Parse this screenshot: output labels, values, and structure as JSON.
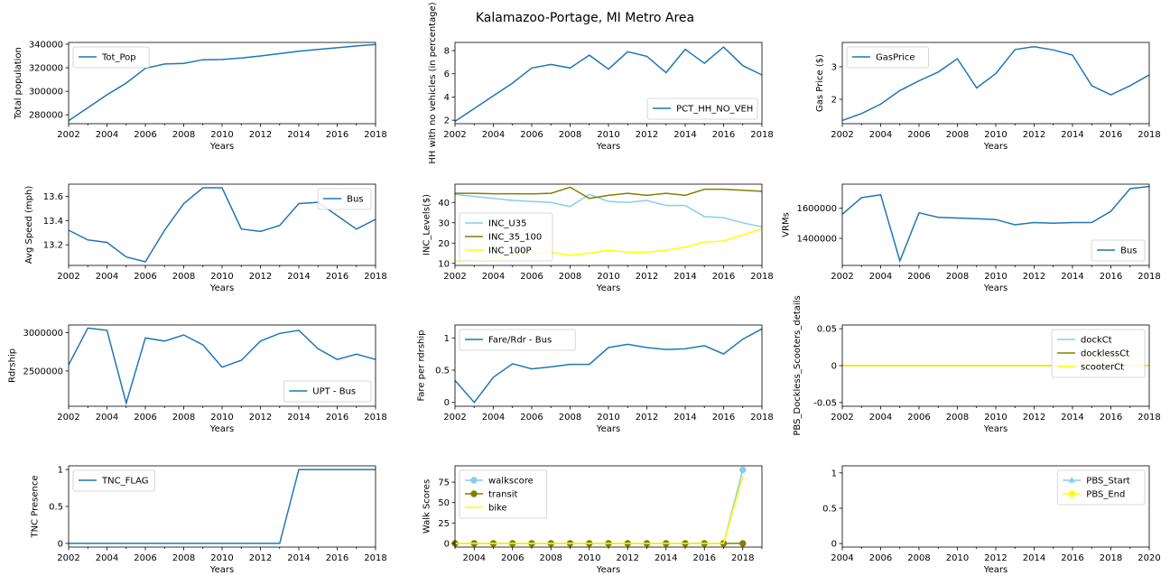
{
  "title": "Kalamazoo-Portage, MI Metro Area",
  "colors": {
    "blue": "#1f77b4",
    "skyblue": "#87ceeb",
    "olive": "#808000",
    "yellow": "#ffff00"
  },
  "chart_data": [
    {
      "type": "line",
      "ylabel": "Total population",
      "xlabel": "Years",
      "xlim": [
        2002,
        2018
      ],
      "xticks": [
        2002,
        2004,
        2006,
        2008,
        2010,
        2012,
        2014,
        2016,
        2018
      ],
      "ylim": [
        272500,
        341500
      ],
      "yticks": [
        280000,
        300000,
        320000,
        340000
      ],
      "legend": "upper-left",
      "series": [
        {
          "name": "Tot_Pop",
          "color": "#1f77b4",
          "x": [
            2002,
            2003,
            2004,
            2005,
            2006,
            2007,
            2008,
            2009,
            2010,
            2011,
            2012,
            2013,
            2014,
            2015,
            2016,
            2017,
            2018
          ],
          "y": [
            275000,
            286000,
            297000,
            307000,
            319500,
            323200,
            323700,
            326800,
            327000,
            328200,
            330000,
            332000,
            334000,
            335500,
            337000,
            338500,
            339800
          ]
        }
      ]
    },
    {
      "type": "line",
      "ylabel": "HH with no vehicles (in percentage)",
      "xlabel": "Years",
      "xlim": [
        2002,
        2018
      ],
      "xticks": [
        2002,
        2004,
        2006,
        2008,
        2010,
        2012,
        2014,
        2016,
        2018
      ],
      "ylim": [
        1.7,
        8.7
      ],
      "yticks": [
        2,
        4,
        6,
        8
      ],
      "legend": "lower-right",
      "series": [
        {
          "name": "PCT_HH_NO_VEH",
          "color": "#1f77b4",
          "x": [
            2002,
            2003,
            2004,
            2005,
            2006,
            2007,
            2008,
            2009,
            2010,
            2011,
            2012,
            2013,
            2014,
            2015,
            2016,
            2017,
            2018
          ],
          "y": [
            1.9,
            3.0,
            4.1,
            5.2,
            6.5,
            6.8,
            6.5,
            7.6,
            6.4,
            7.9,
            7.5,
            6.1,
            8.1,
            6.9,
            8.3,
            6.7,
            5.9
          ]
        }
      ]
    },
    {
      "type": "line",
      "ylabel": "Gas Price ($)",
      "xlabel": "Years",
      "xlim": [
        2002,
        2018
      ],
      "xticks": [
        2002,
        2004,
        2006,
        2008,
        2010,
        2012,
        2014,
        2016,
        2018
      ],
      "ylim": [
        1.25,
        3.75
      ],
      "yticks": [
        2,
        3
      ],
      "legend": "upper-left",
      "series": [
        {
          "name": "GasPrice",
          "color": "#1f77b4",
          "x": [
            2002,
            2003,
            2004,
            2005,
            2006,
            2007,
            2008,
            2009,
            2010,
            2011,
            2012,
            2013,
            2014,
            2015,
            2016,
            2017,
            2018
          ],
          "y": [
            1.35,
            1.56,
            1.85,
            2.27,
            2.57,
            2.84,
            3.25,
            2.35,
            2.79,
            3.53,
            3.62,
            3.52,
            3.36,
            2.42,
            2.14,
            2.42,
            2.75
          ]
        }
      ]
    },
    {
      "type": "line",
      "ylabel": "Avg Speed (mph)",
      "xlabel": "Years",
      "xlim": [
        2002,
        2018
      ],
      "xticks": [
        2002,
        2004,
        2006,
        2008,
        2010,
        2012,
        2014,
        2016,
        2018
      ],
      "ylim": [
        13.03,
        13.7
      ],
      "yticks": [
        13.2,
        13.4,
        13.6
      ],
      "legend": "upper-right",
      "series": [
        {
          "name": "Bus",
          "color": "#1f77b4",
          "x": [
            2002,
            2003,
            2004,
            2005,
            2006,
            2007,
            2008,
            2009,
            2010,
            2011,
            2012,
            2013,
            2014,
            2015,
            2016,
            2017,
            2018
          ],
          "y": [
            13.32,
            13.24,
            13.22,
            13.1,
            13.06,
            13.32,
            13.54,
            13.67,
            13.67,
            13.33,
            13.31,
            13.36,
            13.54,
            13.55,
            13.44,
            13.33,
            13.41
          ]
        }
      ]
    },
    {
      "type": "line",
      "ylabel": "INC_Levels($)",
      "xlabel": "Years",
      "xlim": [
        2002,
        2018
      ],
      "xticks": [
        2002,
        2004,
        2006,
        2008,
        2010,
        2012,
        2014,
        2016,
        2018
      ],
      "ylim": [
        9,
        49
      ],
      "yticks": [
        10,
        20,
        30,
        40
      ],
      "legend": "lower-left",
      "series": [
        {
          "name": "INC_U35",
          "color": "#87ceeb",
          "x": [
            2002,
            2003,
            2004,
            2005,
            2006,
            2007,
            2008,
            2009,
            2010,
            2011,
            2012,
            2013,
            2014,
            2015,
            2016,
            2017,
            2018
          ],
          "y": [
            44,
            43,
            42,
            41,
            40.5,
            40,
            38,
            44,
            40.5,
            40,
            41,
            38.5,
            38.5,
            33,
            32.5,
            30,
            28
          ]
        },
        {
          "name": "INC_35_100",
          "color": "#808000",
          "x": [
            2002,
            2003,
            2004,
            2005,
            2006,
            2007,
            2008,
            2009,
            2010,
            2011,
            2012,
            2013,
            2014,
            2015,
            2016,
            2017,
            2018
          ],
          "y": [
            44.5,
            44.5,
            44.3,
            44.3,
            44.2,
            44.5,
            47.5,
            42,
            43.5,
            44.5,
            43.5,
            44.5,
            43.5,
            46.5,
            46.5,
            46,
            45.5
          ]
        },
        {
          "name": "INC_100P",
          "color": "#ffff00",
          "x": [
            2002,
            2003,
            2004,
            2005,
            2006,
            2007,
            2008,
            2009,
            2010,
            2011,
            2012,
            2013,
            2014,
            2015,
            2016,
            2017,
            2018
          ],
          "y": [
            11,
            12,
            13,
            14,
            15,
            15.5,
            14,
            15,
            16.5,
            15.5,
            15.5,
            16.5,
            18,
            20.5,
            21,
            24,
            27
          ]
        }
      ]
    },
    {
      "type": "line",
      "ylabel": "VRMs",
      "xlabel": "Years",
      "xlim": [
        2002,
        2018
      ],
      "xticks": [
        2002,
        2004,
        2006,
        2008,
        2010,
        2012,
        2014,
        2016,
        2018
      ],
      "ylim": [
        1220000,
        1760000
      ],
      "yticks": [
        1400000,
        1600000
      ],
      "legend": "lower-right",
      "series": [
        {
          "name": "Bus",
          "color": "#1f77b4",
          "x": [
            2002,
            2003,
            2004,
            2005,
            2006,
            2007,
            2008,
            2009,
            2010,
            2011,
            2012,
            2013,
            2014,
            2015,
            2016,
            2017,
            2018
          ],
          "y": [
            1560000,
            1670000,
            1690000,
            1250000,
            1570000,
            1540000,
            1535000,
            1530000,
            1525000,
            1490000,
            1505000,
            1500000,
            1505000,
            1505000,
            1580000,
            1730000,
            1745000
          ]
        }
      ]
    },
    {
      "type": "line",
      "ylabel": "Rdrship",
      "xlabel": "Years",
      "xlim": [
        2002,
        2018
      ],
      "xticks": [
        2002,
        2004,
        2006,
        2008,
        2010,
        2012,
        2014,
        2016,
        2018
      ],
      "ylim": [
        2040000,
        3100000
      ],
      "yticks": [
        2500000,
        3000000
      ],
      "legend": "lower-right",
      "series": [
        {
          "name": "UPT - Bus",
          "color": "#1f77b4",
          "x": [
            2002,
            2003,
            2004,
            2005,
            2006,
            2007,
            2008,
            2009,
            2010,
            2011,
            2012,
            2013,
            2014,
            2015,
            2016,
            2017,
            2018
          ],
          "y": [
            2580000,
            3060000,
            3030000,
            2080000,
            2930000,
            2890000,
            2970000,
            2840000,
            2550000,
            2640000,
            2890000,
            2990000,
            3030000,
            2790000,
            2650000,
            2720000,
            2650000
          ]
        }
      ]
    },
    {
      "type": "line",
      "ylabel": "Fare per rdrship",
      "xlabel": "Years",
      "xlim": [
        2002,
        2018
      ],
      "xticks": [
        2002,
        2004,
        2006,
        2008,
        2010,
        2012,
        2014,
        2016,
        2018
      ],
      "ylim": [
        -0.06,
        1.2
      ],
      "yticks": [
        0.0,
        0.5,
        1.0
      ],
      "legend": "upper-left",
      "series": [
        {
          "name": "Fare/Rdr - Bus",
          "color": "#1f77b4",
          "x": [
            2002,
            2003,
            2004,
            2005,
            2006,
            2007,
            2008,
            2009,
            2010,
            2011,
            2012,
            2013,
            2014,
            2015,
            2016,
            2017,
            2018
          ],
          "y": [
            0.34,
            0.0,
            0.39,
            0.6,
            0.52,
            0.55,
            0.59,
            0.59,
            0.85,
            0.9,
            0.85,
            0.82,
            0.83,
            0.88,
            0.75,
            0.98,
            1.14
          ]
        }
      ]
    },
    {
      "type": "line",
      "ylabel": "PBS_Dockless_Scooters_details",
      "xlabel": "Years",
      "xlim": [
        2002,
        2018
      ],
      "xticks": [
        2002,
        2004,
        2006,
        2008,
        2010,
        2012,
        2014,
        2016,
        2018
      ],
      "ylim": [
        -0.055,
        0.055
      ],
      "yticks": [
        -0.05,
        0.0,
        0.05
      ],
      "legend": "upper-right",
      "series": [
        {
          "name": "dockCt",
          "color": "#87ceeb",
          "x": [
            2002,
            2003,
            2004,
            2005,
            2006,
            2007,
            2008,
            2009,
            2010,
            2011,
            2012,
            2013,
            2014,
            2015,
            2016,
            2017,
            2018
          ],
          "y": [
            0,
            0,
            0,
            0,
            0,
            0,
            0,
            0,
            0,
            0,
            0,
            0,
            0,
            0,
            0,
            0,
            0
          ]
        },
        {
          "name": "docklessCt",
          "color": "#808000",
          "x": [
            2002,
            2003,
            2004,
            2005,
            2006,
            2007,
            2008,
            2009,
            2010,
            2011,
            2012,
            2013,
            2014,
            2015,
            2016,
            2017,
            2018
          ],
          "y": [
            0,
            0,
            0,
            0,
            0,
            0,
            0,
            0,
            0,
            0,
            0,
            0,
            0,
            0,
            0,
            0,
            0
          ]
        },
        {
          "name": "scooterCt",
          "color": "#ffff00",
          "x": [
            2002,
            2003,
            2004,
            2005,
            2006,
            2007,
            2008,
            2009,
            2010,
            2011,
            2012,
            2013,
            2014,
            2015,
            2016,
            2017,
            2018
          ],
          "y": [
            0,
            0,
            0,
            0,
            0,
            0,
            0,
            0,
            0,
            0,
            0,
            0,
            0,
            0,
            0,
            0,
            0
          ]
        }
      ]
    },
    {
      "type": "line",
      "ylabel": "TNC Presence",
      "xlabel": "Years",
      "xlim": [
        2002,
        2018
      ],
      "xticks": [
        2002,
        2004,
        2006,
        2008,
        2010,
        2012,
        2014,
        2016,
        2018
      ],
      "ylim": [
        -0.05,
        1.05
      ],
      "yticks": [
        0.0,
        0.5,
        1.0
      ],
      "legend": "upper-left",
      "series": [
        {
          "name": "TNC_FLAG",
          "color": "#1f77b4",
          "x": [
            2002,
            2003,
            2004,
            2005,
            2006,
            2007,
            2008,
            2009,
            2010,
            2011,
            2012,
            2013,
            2014,
            2015,
            2016,
            2017,
            2018
          ],
          "y": [
            0,
            0,
            0,
            0,
            0,
            0,
            0,
            0,
            0,
            0,
            0,
            0,
            1,
            1,
            1,
            1,
            1
          ]
        }
      ]
    },
    {
      "type": "line",
      "ylabel": "Walk Scores",
      "xlabel": "Years",
      "xlim": [
        2003,
        2019
      ],
      "xticks": [
        2004,
        2006,
        2008,
        2010,
        2012,
        2014,
        2016,
        2018
      ],
      "ylim": [
        -4.5,
        95
      ],
      "yticks": [
        0,
        25,
        50,
        75
      ],
      "legend": "upper-left",
      "series": [
        {
          "name": "walkscore",
          "color": "#87ceeb",
          "marker": "circle",
          "x": [
            2003,
            2004,
            2005,
            2006,
            2007,
            2008,
            2009,
            2010,
            2011,
            2012,
            2013,
            2014,
            2015,
            2016,
            2017,
            2018
          ],
          "y": [
            0,
            0,
            0,
            0,
            0,
            0,
            0,
            0,
            0,
            0,
            0,
            0,
            0,
            0,
            0,
            90
          ]
        },
        {
          "name": "transit",
          "color": "#808000",
          "marker": "circle",
          "x": [
            2003,
            2004,
            2005,
            2006,
            2007,
            2008,
            2009,
            2010,
            2011,
            2012,
            2013,
            2014,
            2015,
            2016,
            2017,
            2018
          ],
          "y": [
            0,
            0,
            0,
            0,
            0,
            0,
            0,
            0,
            0,
            0,
            0,
            0,
            0,
            0,
            0,
            0
          ]
        },
        {
          "name": "bike",
          "color": "#ffff00",
          "x": [
            2003,
            2004,
            2005,
            2006,
            2007,
            2008,
            2009,
            2010,
            2011,
            2012,
            2013,
            2014,
            2015,
            2016,
            2017,
            2018
          ],
          "y": [
            0,
            0,
            0,
            0,
            0,
            0,
            0,
            0,
            0,
            0,
            0,
            0,
            0,
            0,
            0,
            82
          ]
        }
      ]
    },
    {
      "type": "line",
      "ylabel": "",
      "xlabel": "Years",
      "xlim": [
        2004,
        2020
      ],
      "xticks": [
        2004,
        2006,
        2008,
        2010,
        2012,
        2014,
        2016,
        2018,
        2020
      ],
      "ylim": [
        -0.05,
        1.1
      ],
      "yticks": [
        0.0,
        0.5,
        1.0
      ],
      "legend": "upper-right",
      "series": [
        {
          "name": "PBS_Start",
          "color": "#87ceeb",
          "marker": "triangle",
          "x": [],
          "y": []
        },
        {
          "name": "PBS_End",
          "color": "#ffff00",
          "marker": "circle",
          "x": [],
          "y": []
        }
      ]
    }
  ]
}
